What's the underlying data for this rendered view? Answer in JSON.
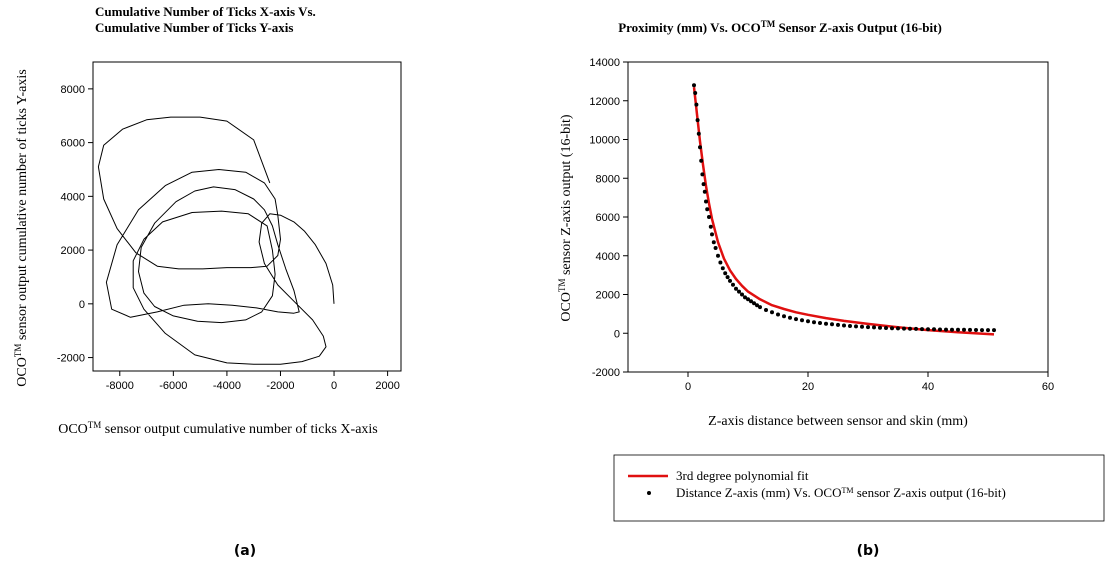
{
  "chart_data": [
    {
      "id": "a",
      "type": "line",
      "panel_label": "(a)",
      "title_lines": [
        "Cumulative Number of Ticks X-axis Vs.",
        "Cumulative Number of Ticks Y-axis"
      ],
      "xlabel": {
        "prefix": "OCO",
        "sup": "TM",
        "suffix": " sensor output cumulative number of ticks X-axis"
      },
      "ylabel": {
        "prefix": "OCO",
        "sup": "TM",
        "suffix": " sensor output cumulative number of ticks Y-axis"
      },
      "xlim": [
        -9000,
        2500
      ],
      "ylim": [
        -2500,
        9000
      ],
      "xticks": [
        -8000,
        -6000,
        -4000,
        -2000,
        0,
        2000
      ],
      "yticks": [
        -2000,
        0,
        2000,
        4000,
        6000,
        8000
      ],
      "grid": false,
      "series": [
        {
          "color": "#000000",
          "x": [
            0,
            -50,
            -300,
            -700,
            -1100,
            -1500,
            -2000,
            -2400,
            -2700,
            -2800,
            -2600,
            -2100,
            -1400,
            -800,
            -400,
            -300,
            -550,
            -1200,
            -2000,
            -3000,
            -4000,
            -5200,
            -6300,
            -7100,
            -7500,
            -7500,
            -7100,
            -6400,
            -5300,
            -4200,
            -3200,
            -2500,
            -2300,
            -2200,
            -2300,
            -2700,
            -3300,
            -4200,
            -5100,
            -6000,
            -6700,
            -7100,
            -7300,
            -7200,
            -6700,
            -5900,
            -5200,
            -4500,
            -3700,
            -3000,
            -2600,
            -2300,
            -2100,
            -1800,
            -1500,
            -1300,
            -1500,
            -2100,
            -2900,
            -3800,
            -4700,
            -5600,
            -6600,
            -7600,
            -8300,
            -8500,
            -8100,
            -7300,
            -6300,
            -5300,
            -4300,
            -3300,
            -2600,
            -2200,
            -2100,
            -2000,
            -2100,
            -2500,
            -3100,
            -4000,
            -4900,
            -5800,
            -6600,
            -7400,
            -8100,
            -8600,
            -8800,
            -8600,
            -7900,
            -7000,
            -6100,
            -5000,
            -4000,
            -3000,
            -2400
          ],
          "y": [
            0,
            700,
            1500,
            2200,
            2700,
            3050,
            3300,
            3350,
            3000,
            2300,
            1500,
            700,
            0,
            -600,
            -1200,
            -1600,
            -1950,
            -2150,
            -2250,
            -2250,
            -2200,
            -1900,
            -1100,
            -200,
            600,
            1600,
            2400,
            3050,
            3400,
            3450,
            3350,
            2900,
            2000,
            1100,
            300,
            -300,
            -600,
            -700,
            -650,
            -450,
            -100,
            400,
            1200,
            2100,
            3000,
            3800,
            4200,
            4350,
            4250,
            3900,
            3500,
            2900,
            2200,
            1300,
            500,
            -300,
            -350,
            -300,
            -150,
            -50,
            0,
            -50,
            -300,
            -500,
            -200,
            800,
            2200,
            3500,
            4400,
            4900,
            5000,
            4900,
            4500,
            3900,
            3300,
            2400,
            1800,
            1400,
            1350,
            1350,
            1300,
            1300,
            1400,
            1900,
            2800,
            3900,
            5100,
            5900,
            6500,
            6850,
            6950,
            6950,
            6800,
            6100,
            4500
          ]
        }
      ]
    },
    {
      "id": "b",
      "type": "scatter",
      "panel_label": "(b)",
      "title": {
        "prefix": "Proximity (mm) Vs. OCO",
        "sup": "TM",
        "suffix": " Sensor Z-axis Output (16-bit)"
      },
      "xlabel": {
        "prefix": "Z-axis distance between sensor and skin (mm)",
        "sup": "",
        "suffix": ""
      },
      "ylabel": {
        "prefix": "OCO",
        "sup": "TM",
        "suffix": " sensor Z-axis output (16-bit)"
      },
      "xlim": [
        -10,
        60
      ],
      "ylim": [
        -2000,
        14000
      ],
      "xticks": [
        0,
        20,
        40,
        60
      ],
      "yticks": [
        -2000,
        0,
        2000,
        4000,
        6000,
        8000,
        10000,
        12000,
        14000
      ],
      "grid": false,
      "legend_position": "bottom",
      "series": [
        {
          "name": "3rd degree polynomial fit",
          "kind": "line",
          "color": "#e01010",
          "x": [
            1.0,
            1.5,
            2.0,
            2.5,
            3.0,
            3.5,
            4.0,
            5.0,
            6.0,
            7.0,
            8.0,
            9.0,
            10.0,
            12.0,
            14.0,
            16.0,
            18.0,
            20.0,
            23.0,
            26.0,
            30.0,
            35.0,
            40.0,
            45.0,
            51.0
          ],
          "y": [
            12700,
            11300,
            9900,
            8700,
            7600,
            6700,
            5900,
            4700,
            3850,
            3250,
            2800,
            2450,
            2150,
            1750,
            1450,
            1250,
            1080,
            950,
            780,
            640,
            480,
            310,
            160,
            50,
            -60
          ]
        },
        {
          "name": {
            "prefix": "Distance Z-axis (mm) Vs. OCO",
            "sup": "TM",
            "suffix": " sensor Z-axis output (16-bit)"
          },
          "kind": "scatter",
          "color": "#000000",
          "x": [
            1.0,
            1.2,
            1.4,
            1.6,
            1.8,
            2.0,
            2.2,
            2.4,
            2.6,
            2.8,
            3.0,
            3.2,
            3.5,
            3.8,
            4.0,
            4.3,
            4.6,
            5.0,
            5.4,
            5.8,
            6.2,
            6.6,
            7.0,
            7.5,
            8.0,
            8.5,
            9.0,
            9.5,
            10.0,
            10.5,
            11.0,
            11.5,
            12.0,
            13.0,
            14.0,
            15.0,
            16.0,
            17.0,
            18.0,
            19.0,
            20.0,
            21.0,
            22.0,
            23.0,
            24.0,
            25.0,
            26.0,
            27.0,
            28.0,
            29.0,
            30.0,
            31.0,
            32.0,
            33.0,
            34.0,
            35.0,
            36.0,
            37.0,
            38.0,
            39.0,
            40.0,
            41.0,
            42.0,
            43.0,
            44.0,
            45.0,
            46.0,
            47.0,
            48.0,
            49.0,
            50.0,
            51.0
          ],
          "y": [
            12800,
            12400,
            11800,
            11000,
            10300,
            9600,
            8900,
            8200,
            7700,
            7300,
            6800,
            6400,
            6000,
            5500,
            5100,
            4700,
            4400,
            4000,
            3650,
            3350,
            3100,
            2900,
            2700,
            2500,
            2300,
            2150,
            2000,
            1850,
            1750,
            1650,
            1550,
            1450,
            1350,
            1200,
            1080,
            970,
            880,
            800,
            730,
            670,
            620,
            570,
            530,
            490,
            460,
            430,
            400,
            375,
            355,
            335,
            315,
            300,
            285,
            270,
            260,
            250,
            240,
            230,
            222,
            215,
            208,
            202,
            196,
            190,
            185,
            180,
            176,
            172,
            168,
            165,
            162,
            160
          ]
        }
      ]
    }
  ]
}
